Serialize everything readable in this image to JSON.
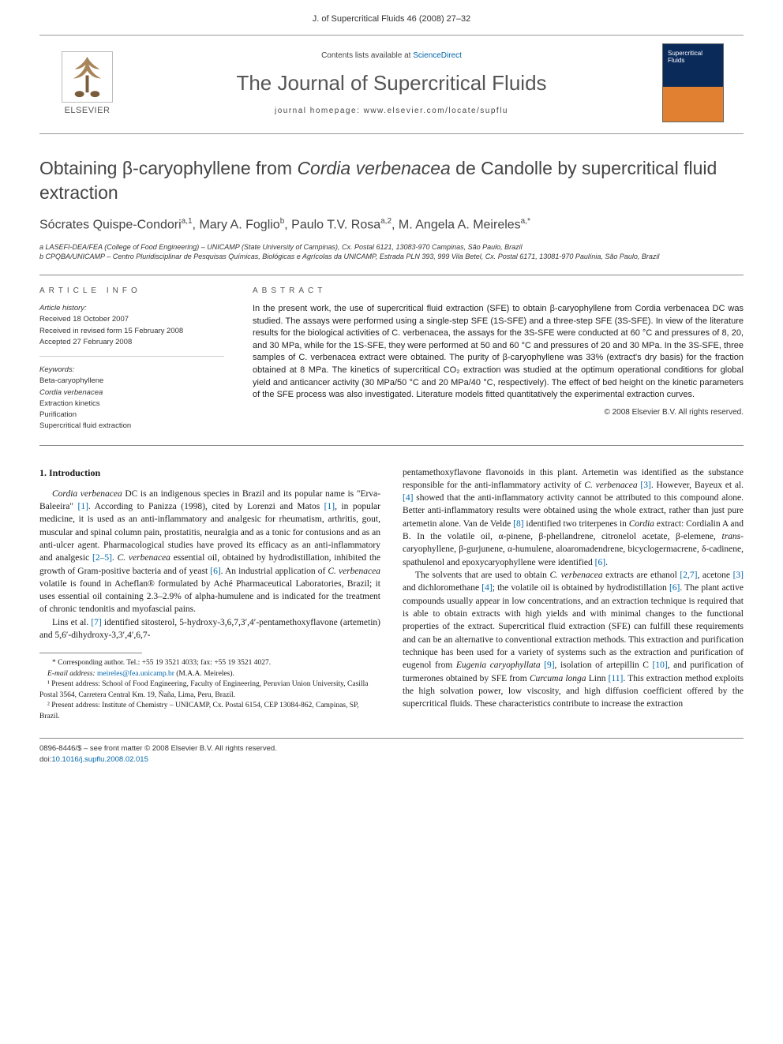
{
  "runningHead": "J. of Supercritical Fluids 46 (2008) 27–32",
  "masthead": {
    "contentsLine_pre": "Contents lists available at ",
    "contentsLine_link": "ScienceDirect",
    "journalTitle": "The Journal of Supercritical Fluids",
    "homepageLine": "journal homepage: www.elsevier.com/locate/supflu",
    "publisherName": "ELSEVIER",
    "coverText": "Supercritical Fluids"
  },
  "article": {
    "title_pre": "Obtaining β-caryophyllene from ",
    "title_italic": "Cordia verbenacea",
    "title_post": " de Candolle by supercritical fluid extraction",
    "authorsHtml": "Sócrates Quispe-Condori<sup>a,1</sup>, Mary A. Foglio<sup>b</sup>, Paulo T.V. Rosa<sup>a,2</sup>, M. Angela A. Meireles<sup>a,*</sup>",
    "aff_a": "a LASEFI-DEA/FEA (College of Food Engineering) – UNICAMP (State University of Campinas), Cx. Postal 6121, 13083-970 Campinas, São Paulo, Brazil",
    "aff_b": "b CPQBA/UNICAMP – Centro Pluridisciplinar de Pesquisas Químicas, Biológicas e Agrícolas da UNICAMP, Estrada PLN 393, 999 Vila Betel, Cx. Postal 6171, 13081-970 Paulínia, São Paulo, Brazil"
  },
  "info": {
    "heading": "ARTICLE INFO",
    "historyLabel": "Article history:",
    "received": "Received 18 October 2007",
    "revised": "Received in revised form 15 February 2008",
    "accepted": "Accepted 27 February 2008",
    "keywordsLabel": "Keywords:",
    "kw1": "Beta-caryophyllene",
    "kw2": "Cordia verbenacea",
    "kw3": "Extraction kinetics",
    "kw4": "Purification",
    "kw5": "Supercritical fluid extraction"
  },
  "abstract": {
    "heading": "ABSTRACT",
    "text": "In the present work, the use of supercritical fluid extraction (SFE) to obtain β-caryophyllene from Cordia verbenacea DC was studied. The assays were performed using a single-step SFE (1S-SFE) and a three-step SFE (3S-SFE). In view of the literature results for the biological activities of C. verbenacea, the assays for the 3S-SFE were conducted at 60 °C and pressures of 8, 20, and 30 MPa, while for the 1S-SFE, they were performed at 50 and 60 °C and pressures of 20 and 30 MPa. In the 3S-SFE, three samples of C. verbenacea extract were obtained. The purity of β-caryophyllene was 33% (extract's dry basis) for the fraction obtained at 8 MPa. The kinetics of supercritical CO₂ extraction was studied at the optimum operational conditions for global yield and anticancer activity (30 MPa/50 °C and 20 MPa/40 °C, respectively). The effect of bed height on the kinetic parameters of the SFE process was also investigated. Literature models fitted quantitatively the experimental extraction curves.",
    "copyright": "© 2008 Elsevier B.V. All rights reserved."
  },
  "body": {
    "introHeading": "1.  Introduction",
    "p1_a": "Cordia verbenacea",
    "p1_b": " DC is an indigenous species in Brazil and its popular name is \"Erva-Baleeira\" ",
    "p1_ref1": "[1]",
    "p1_c": ". According to Panizza (1998), cited by Lorenzi and Matos ",
    "p1_ref1b": "[1]",
    "p1_d": ", in popular medicine, it is used as an anti-inflammatory and analgesic for rheumatism, arthritis, gout, muscular and spinal column pain, prostatitis, neuralgia and as a tonic for contusions and as an anti-ulcer agent. Pharmacological studies have proved its efficacy as an anti-inflammatory and analgesic ",
    "p1_ref25": "[2–5]",
    "p1_e": ". ",
    "p1_f": "C. verbenacea",
    "p1_g": " essential oil, obtained by hydrodistillation, inhibited the growth of Gram-positive bacteria and of yeast ",
    "p1_ref6": "[6]",
    "p1_h": ". An industrial application of ",
    "p1_i": "C. verbenacea",
    "p1_j": " volatile is found in Acheflan® formulated by Aché Pharmaceutical Laboratories, Brazil; it uses essential oil containing 2.3–2.9% of alpha-humulene and is indicated for the treatment of chronic tendonitis and myofascial pains.",
    "p2_a": "Lins et al. ",
    "p2_ref7": "[7]",
    "p2_b": " identified sitosterol, 5-hydroxy-3,6,7,3′,4′-pentamethoxyflavone (artemetin) and 5,6′-dihydroxy-3,3′,4′,6,7-",
    "rc_p1_a": "pentamethoxyflavone flavonoids in this plant. Artemetin was identified as the substance responsible for the anti-inflammatory activity of ",
    "rc_p1_b": "C. verbenacea ",
    "rc_p1_ref3": "[3]",
    "rc_p1_c": ". However, Bayeux et al. ",
    "rc_p1_ref4": "[4]",
    "rc_p1_d": " showed that the anti-inflammatory activity cannot be attributed to this compound alone. Better anti-inflammatory results were obtained using the whole extract, rather than just pure artemetin alone. Van de Velde ",
    "rc_p1_ref8": "[8]",
    "rc_p1_e": " identified two triterpenes in ",
    "rc_p1_f": "Cordia",
    "rc_p1_g": " extract: Cordialin A and B. In the volatile oil, α-pinene, β-phellandrene, citronelol acetate, β-elemene, ",
    "rc_p1_h": "trans",
    "rc_p1_i": "-caryophyllene, β-gurjunene, α-humulene, aloaromadendrene, bicyclogermacrene, δ-cadinene, spathulenol and epoxycaryophyllene were identified ",
    "rc_p1_ref6": "[6]",
    "rc_p1_j": ".",
    "rc_p2_a": "The solvents that are used to obtain ",
    "rc_p2_b": "C. verbenacea",
    "rc_p2_c": " extracts are ethanol ",
    "rc_p2_ref27": "[2,7]",
    "rc_p2_d": ", acetone ",
    "rc_p2_ref3": "[3]",
    "rc_p2_e": " and dichloromethane ",
    "rc_p2_ref4": "[4]",
    "rc_p2_f": "; the volatile oil is obtained by hydrodistillation ",
    "rc_p2_ref6": "[6]",
    "rc_p2_g": ". The plant active compounds usually appear in low concentrations, and an extraction technique is required that is able to obtain extracts with high yields and with minimal changes to the functional properties of the extract. Supercritical fluid extraction (SFE) can fulfill these requirements and can be an alternative to conventional extraction methods. This extraction and purification technique has been used for a variety of systems such as the extraction and purification of eugenol from ",
    "rc_p2_h": "Eugenia caryophyllata ",
    "rc_p2_ref9": "[9]",
    "rc_p2_i": ", isolation of artepillin C ",
    "rc_p2_ref10": "[10]",
    "rc_p2_j": ", and purification of turmerones obtained by SFE from ",
    "rc_p2_k": "Curcuma longa",
    "rc_p2_l": " Linn ",
    "rc_p2_ref11": "[11]",
    "rc_p2_m": ". This extraction method exploits the high solvation power, low viscosity, and high diffusion coefficient offered by the supercritical fluids. These characteristics contribute to increase the extraction"
  },
  "footnotes": {
    "corr": "* Corresponding author. Tel.: +55 19 3521 4033; fax: +55 19 3521 4027.",
    "emailLabel": "E-mail address: ",
    "email": "meireles@fea.unicamp.br",
    "emailTail": " (M.A.A. Meireles).",
    "n1": "¹ Present address: School of Food Engineering, Faculty of Engineering, Peruvian Union University, Casilla Postal 3564, Carretera Central Km. 19, Ñaña, Lima, Peru, Brazil.",
    "n2": "² Present address: Institute of Chemistry – UNICAMP, Cx. Postal 6154, CEP 13084-862, Campinas, SP, Brazil."
  },
  "pageFoot": {
    "line1": "0896-8446/$ – see front matter © 2008 Elsevier B.V. All rights reserved.",
    "doiLabel": "doi:",
    "doi": "10.1016/j.supflu.2008.02.015"
  },
  "colors": {
    "link": "#0066aa",
    "text": "#1a1a1a",
    "rule": "#888888",
    "heading": "#555555"
  },
  "typography": {
    "bodyFont": "Georgia, Times New Roman, serif",
    "sansFont": "Arial, sans-serif",
    "titleSizePx": 23,
    "journalTitleSizePx": 26,
    "bodySizePx": 11.5,
    "abstractSizePx": 11
  },
  "layout": {
    "pageWidthPx": 992,
    "pageHeightPx": 1323,
    "marginLRpx": 50,
    "columnGapPx": 28,
    "infoColWidthPx": 234
  }
}
